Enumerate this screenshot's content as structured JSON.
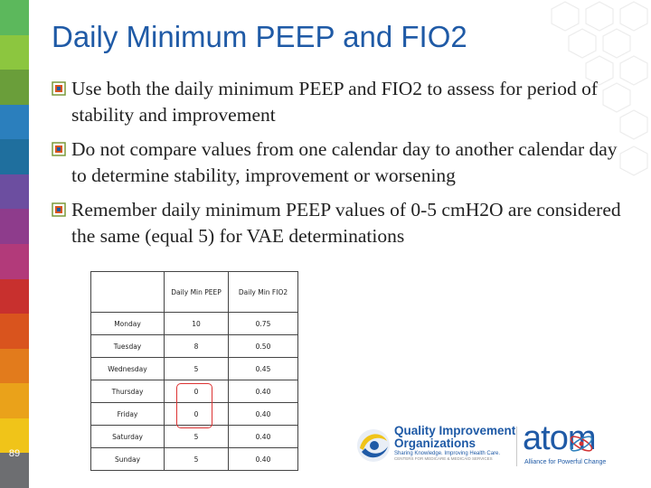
{
  "slide": {
    "title": "Daily Minimum PEEP and FIO2",
    "number": "89"
  },
  "bullets": [
    {
      "text": "Use both the daily minimum PEEP and FIO2 to assess for period of stability and improvement",
      "icon": "bullet-square-icon"
    },
    {
      "text": "Do not compare values from one calendar day to another calendar day to determine stability, improvement or worsening",
      "icon": "bullet-square-icon"
    },
    {
      "text": "Remember daily minimum PEEP values of 0-5 cmH2O are considered the same (equal 5) for VAE determinations",
      "icon": "bullet-square-icon"
    }
  ],
  "table": {
    "headers": [
      "",
      "Daily Min PEEP",
      "Daily Min FIO2"
    ],
    "rows": [
      [
        "Monday",
        "10",
        "0.75"
      ],
      [
        "Tuesday",
        "8",
        "0.50"
      ],
      [
        "Wednesday",
        "5",
        "0.45"
      ],
      [
        "Thursday",
        "0",
        "0.40"
      ],
      [
        "Friday",
        "0",
        "0.40"
      ],
      [
        "Saturday",
        "5",
        "0.40"
      ],
      [
        "Sunday",
        "5",
        "0.40"
      ]
    ]
  },
  "logos": {
    "qio_name_line1": "Quality Improvement",
    "qio_name_line2": "Organizations",
    "qio_tagline": "Sharing Knowledge. Improving Health Care.",
    "qio_cms": "CENTERS FOR MEDICARE & MEDICAID SERVICES",
    "atom_word": "atom",
    "atom_tagline": "Alliance for Powerful Change"
  },
  "colors": {
    "title": "#1f5aa6",
    "highlight_border": "#d33333",
    "stripe": [
      "#5cb85c",
      "#8cc63f",
      "#6a9e3a",
      "#2b7fbd",
      "#1f6f9e",
      "#6c4ea0",
      "#8e3c8c",
      "#b23a7a",
      "#c8302e",
      "#d9541e",
      "#e27b1c",
      "#eaa21a",
      "#f0c419",
      "#6d6e71"
    ]
  }
}
